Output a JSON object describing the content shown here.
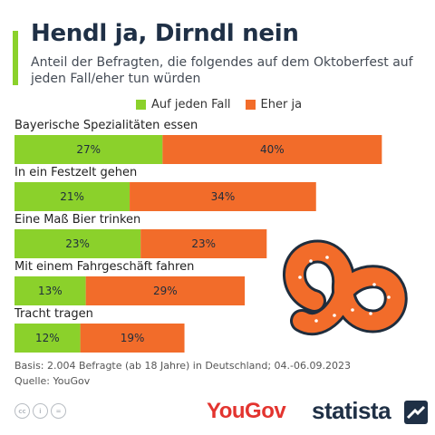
{
  "header": {
    "title": "Hendl ja, Dirndl nein",
    "subtitle": "Anteil der Befragten, die folgendes auf dem Oktoberfest auf jeden Fall/eher tun würden"
  },
  "legend": {
    "series1": "Auf jeden Fall",
    "series2": "Eher ja"
  },
  "colors": {
    "series1": "#8bd12b",
    "series2": "#f26c2a",
    "accent": "#8bd12b"
  },
  "chart_data": {
    "type": "bar",
    "orientation": "horizontal",
    "stacked": true,
    "categories": [
      "Bayerische Spezialitäten essen",
      "In ein Festzelt gehen",
      "Eine Maß Bier trinken",
      "Mit einem Fahrgeschäft fahren",
      "Tracht tragen"
    ],
    "series": [
      {
        "name": "Auf jeden Fall",
        "values": [
          27,
          21,
          23,
          13,
          12
        ],
        "labels": [
          "27%",
          "21%",
          "23%",
          "13%",
          "12%"
        ]
      },
      {
        "name": "Eher ja",
        "values": [
          40,
          34,
          23,
          29,
          19
        ],
        "labels": [
          "40%",
          "34%",
          "23%",
          "29%",
          "19%"
        ]
      }
    ],
    "value_unit": "%",
    "legend_position": "top"
  },
  "footer": {
    "basis": "Basis: 2.004 Befragte (ab 18 Jahre) in Deutschland; 04.-06.09.2023",
    "source": "Quelle: YouGov"
  },
  "branding": {
    "yougov": "YouGov",
    "statista": "statista",
    "license_icons": [
      "cc",
      "i",
      "="
    ]
  },
  "decoration": {
    "icon": "pretzel-icon"
  }
}
